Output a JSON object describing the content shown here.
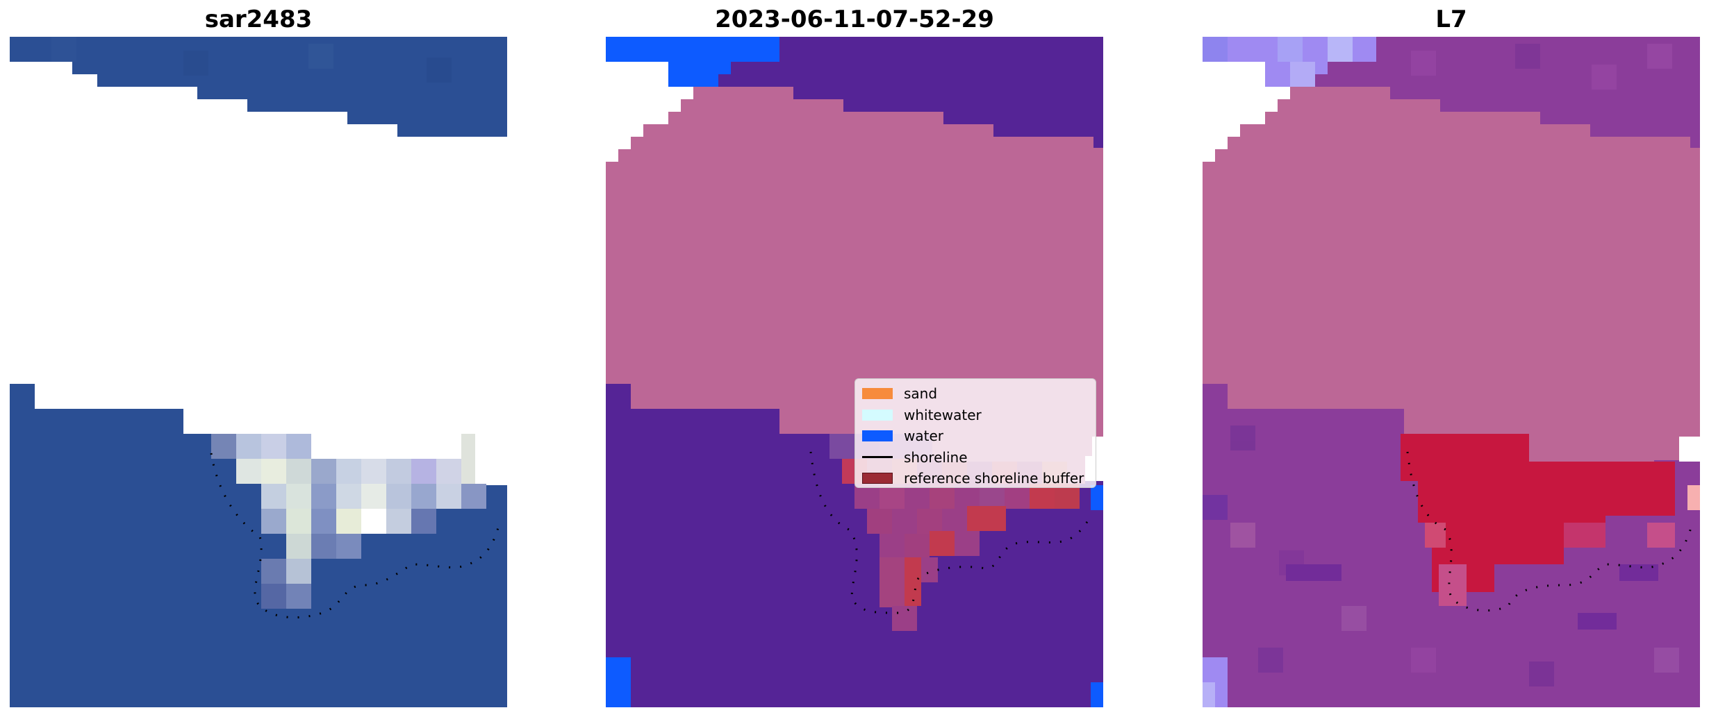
{
  "panels": [
    {
      "title": "sar2483"
    },
    {
      "title": "2023-06-11-07-52-29"
    },
    {
      "title": "L7"
    }
  ],
  "legend": {
    "items": [
      {
        "label": "sand",
        "color": "#f78b3c",
        "kind": "patch"
      },
      {
        "label": "whitewater",
        "color": "#d4fbff",
        "kind": "patch"
      },
      {
        "label": "water",
        "color": "#0d5bff",
        "kind": "patch"
      },
      {
        "label": "shoreline",
        "color": "#000000",
        "kind": "line"
      },
      {
        "label": "reference shoreline buffer",
        "color": "#9b2b35",
        "kind": "patch"
      }
    ]
  },
  "colors": {
    "ocean_rgb": "#2a4e93",
    "cloud_mask_pink": "#bc6796",
    "classified_water_purple": "#552496",
    "classified_water_blue": "#0d5bff",
    "buffer_red": "#c22f45",
    "mndwi_purple": "#8b3d9a",
    "mndwi_red": "#c7173f"
  }
}
